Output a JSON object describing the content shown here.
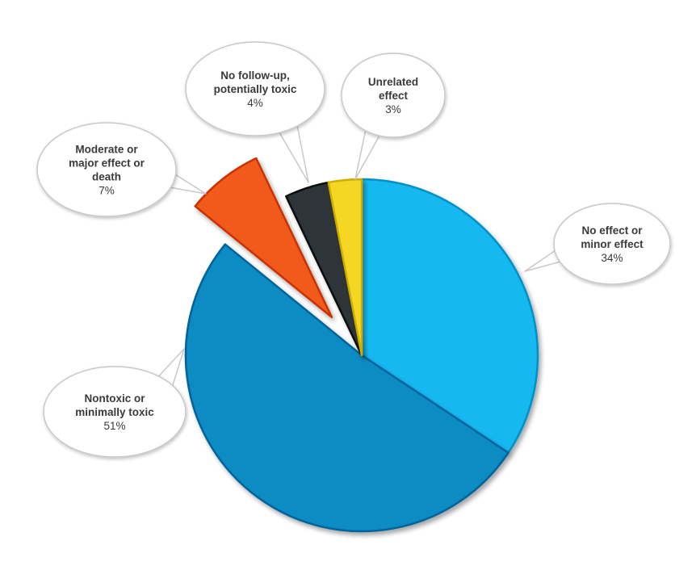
{
  "chart_data": {
    "type": "pie",
    "title": "",
    "slices": [
      {
        "label": "No effect or minor effect",
        "lines": [
          "No effect or",
          "minor effect"
        ],
        "value": 34,
        "value_label": "34%",
        "color": "#12B8F0",
        "exploded": false
      },
      {
        "label": "Nontoxic or minimally toxic",
        "lines": [
          "Nontoxic or",
          "minimally toxic"
        ],
        "value": 51,
        "value_label": "51%",
        "color": "#0A8CC4",
        "exploded": false
      },
      {
        "label": "Moderate or major effect or death",
        "lines": [
          "Moderate or",
          "major effect or",
          "death"
        ],
        "value": 7,
        "value_label": "7%",
        "color": "#F25A1E",
        "exploded": true
      },
      {
        "label": "No follow-up, potentially toxic",
        "lines": [
          "No follow-up,",
          "potentially toxic"
        ],
        "value": 4,
        "value_label": "4%",
        "color": "#2F3438",
        "exploded": false
      },
      {
        "label": "Unrelated effect",
        "lines": [
          "Unrelated",
          "effect"
        ],
        "value": 3,
        "value_label": "3%",
        "color": "#F5D620",
        "exploded": false
      }
    ],
    "start_angle_deg": 0,
    "direction": "clockwise",
    "legend": "none",
    "labels": "callouts"
  }
}
